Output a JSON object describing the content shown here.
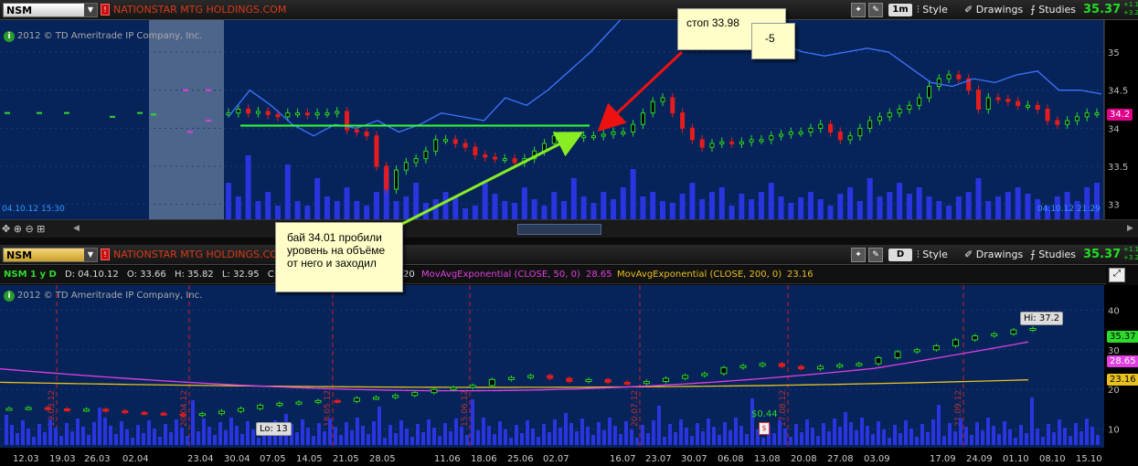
{
  "top_chart": {
    "symbol": "NSM",
    "company": "NATIONSTAR MTG HOLDINGS.COM",
    "aggregation": "1m",
    "style_label": "Style",
    "drawings_label": "Drawings",
    "studies_label": "Studies",
    "price": "35.37",
    "change_up": "+1.1",
    "change_pct": "+3.2",
    "copyright": "2012 © TD Ameritrade IP Company, Inc.",
    "start_time": "04.10.12 15:30",
    "end_time": "04.10.12 21:29",
    "last_price_marker": "34.2"
  },
  "bottom_chart": {
    "symbol": "NSM",
    "company": "NATIONSTAR MTG HOLDINGS.COM",
    "aggregation": "D",
    "style_label": "Style",
    "drawings_label": "Drawings",
    "studies_label": "Studies",
    "price": "35.37",
    "change_up": "+1.1",
    "change_pct": "+3.2",
    "copyright": "2012 © TD Ameritrade IP Company, Inc.",
    "status_symbol": "NSM 1 y D",
    "status_date": "D: 04.10.12",
    "status_open": "O: 33.66",
    "status_high": "H: 35.82",
    "status_low": "L: 32.95",
    "status_close": "C: 35.",
    "status_vol_tail": "20",
    "ema50_label": "MovAvgExponential (CLOSE, 50, 0)",
    "ema50_value": "28.65",
    "ema200_label": "MovAvgExponential (CLOSE, 200, 0)",
    "ema200_value": "23.16",
    "hi_label": "Hi: 37.2",
    "lo_label": "Lo: 13",
    "dividend_label": "$0.44",
    "price_marker": "35.37",
    "ema50_marker": "28.65",
    "ema200_marker": "23.16"
  },
  "annotations": {
    "stop": "стоп 33.98",
    "minus": "-5",
    "buy_line1": "бай 34.01 пробили",
    "buy_line2": "уровень на объёме",
    "buy_line3": "от него и заходил"
  },
  "chart_data": [
    {
      "type": "candlestick",
      "title": "NSM 1m intraday",
      "ylim": [
        32.9,
        35.3
      ],
      "y_ticks": [
        35,
        34.5,
        34,
        33.5,
        33
      ],
      "close": [
        34.2,
        34.25,
        34.2,
        34.22,
        34.18,
        34.15,
        34.2,
        34.2,
        34.18,
        34.2,
        34.2,
        34.22,
        33.98,
        33.95,
        33.9,
        33.5,
        33.2,
        33.45,
        33.55,
        33.6,
        33.7,
        33.85,
        33.85,
        33.8,
        33.75,
        33.65,
        33.62,
        33.6,
        33.6,
        33.55,
        33.6,
        33.7,
        33.8,
        33.9,
        33.85,
        33.88,
        33.9,
        33.9,
        33.92,
        33.95,
        33.95,
        34.05,
        34.2,
        34.35,
        34.4,
        34.2,
        34.0,
        33.85,
        33.75,
        33.8,
        33.82,
        33.8,
        33.82,
        33.85,
        33.85,
        33.9,
        33.92,
        33.95,
        33.95,
        34.0,
        34.05,
        33.95,
        33.85,
        33.9,
        34.0,
        34.1,
        34.15,
        34.2,
        34.25,
        34.3,
        34.4,
        34.55,
        34.65,
        34.7,
        34.65,
        34.5,
        34.25,
        34.4,
        34.38,
        34.35,
        34.3,
        34.3,
        34.25,
        34.1,
        34.05,
        34.1,
        34.15,
        34.2,
        34.2
      ]
    },
    {
      "type": "candlestick",
      "title": "NSM 1y daily",
      "ylim": [
        6,
        44
      ],
      "y_ticks": [
        40,
        30,
        20,
        10
      ],
      "x_tick_labels": [
        "12.03",
        "19.03",
        "26.03",
        "02.04",
        "23.04",
        "30.04",
        "07.05",
        "14.05",
        "21.05",
        "28.05",
        "11.06",
        "18.06",
        "25.06",
        "02.07",
        "16.07",
        "23.07",
        "30.07",
        "06.08",
        "13.08",
        "20.08",
        "27.08",
        "03.09",
        "17.09",
        "24.09",
        "01.10",
        "08.10",
        "15.10"
      ],
      "series": [
        {
          "name": "MovAvgExponential (CLOSE, 50, 0)",
          "last": 28.65
        },
        {
          "name": "MovAvgExponential (CLOSE, 200, 0)",
          "last": 23.16
        }
      ],
      "close": [
        15.2,
        15.4,
        15.1,
        14.8,
        15.0,
        14.6,
        14.2,
        14.0,
        13.8,
        13.5,
        13.9,
        14.5,
        15.2,
        16.0,
        16.5,
        16.8,
        17.2,
        17.0,
        17.8,
        18.0,
        18.5,
        19.2,
        20.0,
        20.5,
        21.0,
        22.5,
        23.0,
        23.5,
        22.8,
        22.0,
        22.5,
        21.8,
        21.5,
        22.0,
        22.8,
        23.5,
        24.0,
        25.5,
        26.0,
        26.5,
        25.8,
        25.2,
        25.8,
        26.2,
        26.5,
        28.0,
        29.5,
        30.0,
        31.0,
        32.5,
        33.5,
        34.0,
        35.0,
        35.37
      ],
      "hi": 37.2,
      "lo": 13
    }
  ]
}
